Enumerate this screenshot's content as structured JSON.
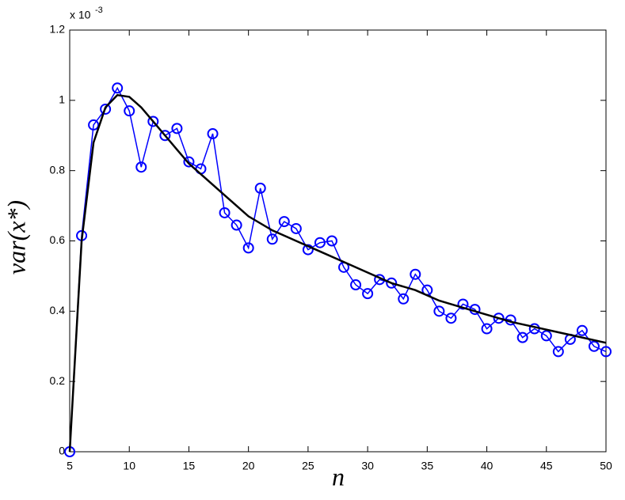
{
  "chart_data": {
    "type": "line",
    "xlabel": "n",
    "ylabel": "var(x*)",
    "y_multiplier": "x 10",
    "y_multiplier_exp": "-3",
    "xlim": [
      5,
      50
    ],
    "xticks": [
      5,
      10,
      15,
      20,
      25,
      30,
      35,
      40,
      45,
      50
    ],
    "ylim": [
      0,
      1.2
    ],
    "yticks": [
      0,
      0.2,
      0.4,
      0.6,
      0.8,
      1,
      1.2
    ],
    "series": [
      {
        "color": "#0000ff",
        "marker": "circle",
        "x": [
          5,
          6,
          7,
          8,
          9,
          10,
          11,
          12,
          13,
          14,
          15,
          16,
          17,
          18,
          19,
          20,
          21,
          22,
          23,
          24,
          25,
          26,
          27,
          28,
          29,
          30,
          31,
          32,
          33,
          34,
          35,
          36,
          37,
          38,
          39,
          40,
          41,
          42,
          43,
          44,
          45,
          46,
          47,
          48,
          49,
          50
        ],
        "values": [
          0,
          0.615,
          0.93,
          0.975,
          1.035,
          0.97,
          0.81,
          0.94,
          0.9,
          0.92,
          0.825,
          0.805,
          0.905,
          0.68,
          0.645,
          0.58,
          0.75,
          0.605,
          0.655,
          0.635,
          0.575,
          0.595,
          0.6,
          0.525,
          0.475,
          0.45,
          0.49,
          0.48,
          0.435,
          0.505,
          0.46,
          0.4,
          0.38,
          0.42,
          0.405,
          0.35,
          0.38,
          0.375,
          0.325,
          0.35,
          0.33,
          0.285,
          0.32,
          0.345,
          0.3,
          0.285
        ]
      },
      {
        "color": "#000000",
        "marker": "none",
        "x": [
          5,
          6,
          7,
          8,
          9,
          10,
          11,
          12,
          13,
          14,
          15,
          16,
          17,
          18,
          19,
          20,
          22,
          24,
          26,
          28,
          30,
          32,
          34,
          36,
          38,
          40,
          42,
          44,
          46,
          48,
          50
        ],
        "values": [
          0,
          0.6,
          0.88,
          0.98,
          1.015,
          1.01,
          0.98,
          0.94,
          0.9,
          0.86,
          0.82,
          0.79,
          0.76,
          0.73,
          0.7,
          0.67,
          0.63,
          0.6,
          0.57,
          0.54,
          0.51,
          0.48,
          0.46,
          0.43,
          0.41,
          0.39,
          0.37,
          0.355,
          0.34,
          0.325,
          0.31
        ]
      }
    ]
  }
}
